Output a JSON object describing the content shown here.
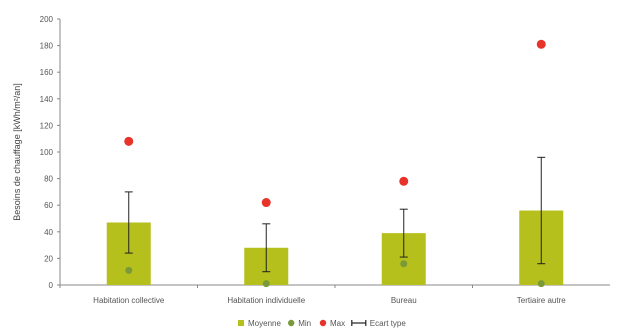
{
  "chart_data": {
    "type": "bar",
    "categories": [
      "Habitation collective",
      "Habitation individuelle",
      "Bureau",
      "Tertiaire autre"
    ],
    "ylabel": "Besoins de chauffage [kWh/m²/an]",
    "xlabel": "",
    "ylim": [
      0,
      200
    ],
    "yticks": [
      0,
      20,
      40,
      60,
      80,
      100,
      120,
      140,
      160,
      180,
      200
    ],
    "grid": false,
    "legend_position": "bottom",
    "series": [
      {
        "name": "Moyenne",
        "values": [
          47,
          28,
          39,
          56
        ],
        "color": "#b5c01c"
      },
      {
        "name": "Min",
        "values": [
          11,
          1,
          16,
          1
        ],
        "color": "#7a9a3a"
      },
      {
        "name": "Max",
        "values": [
          108,
          62,
          78,
          181
        ],
        "color": "#e8332a"
      },
      {
        "name": "Ecart type",
        "values": [
          23,
          18,
          18,
          40
        ],
        "color": "#222222"
      }
    ],
    "legend_items": [
      {
        "label": "Moyenne",
        "marker": "square",
        "color": "#b5c01c"
      },
      {
        "label": "Min",
        "marker": "circle",
        "color": "#7a9a3a"
      },
      {
        "label": "Max",
        "marker": "circle",
        "color": "#e8332a"
      },
      {
        "label": "Ecart type",
        "marker": "errorbar",
        "color": "#222222"
      }
    ]
  }
}
